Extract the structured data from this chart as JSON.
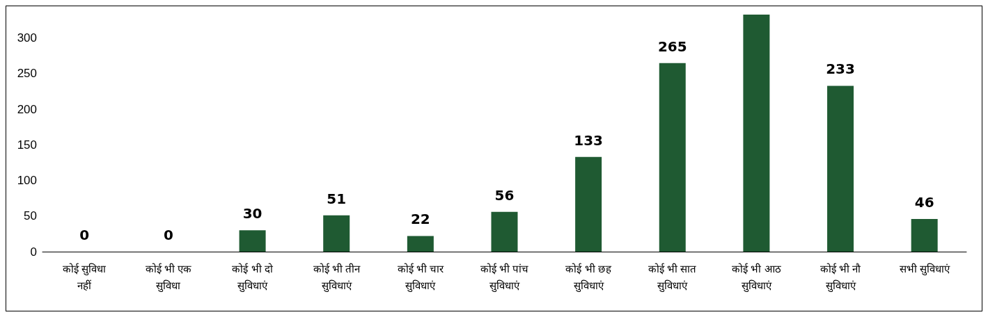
{
  "chart_data": {
    "type": "bar",
    "categories": [
      "कोई सुविधा नहीं",
      "कोई भी एक सुविधा",
      "कोई भी दो सुविधाएं",
      "कोई भी तीन सुविधाएं",
      "कोई भी चार सुविधाएं",
      "कोई भी पांच सुविधाएं",
      "कोई भी छह सुविधाएं",
      "कोई भी सात सुविधाएं",
      "कोई भी आठ सुविधाएं",
      "कोई भी नौ सुविधाएं",
      "सभी सुविधाएं"
    ],
    "values": [
      0,
      0,
      30,
      51,
      22,
      56,
      133,
      265,
      333,
      233,
      46
    ],
    "value_labels": [
      "0",
      "0",
      "30",
      "51",
      "22",
      "56",
      "133",
      "265",
      null,
      "233",
      "46"
    ],
    "color": "#1f5a32",
    "ylim": [
      0,
      333
    ],
    "yticks": [
      0,
      50,
      100,
      150,
      200,
      250,
      300
    ],
    "grid": false
  }
}
